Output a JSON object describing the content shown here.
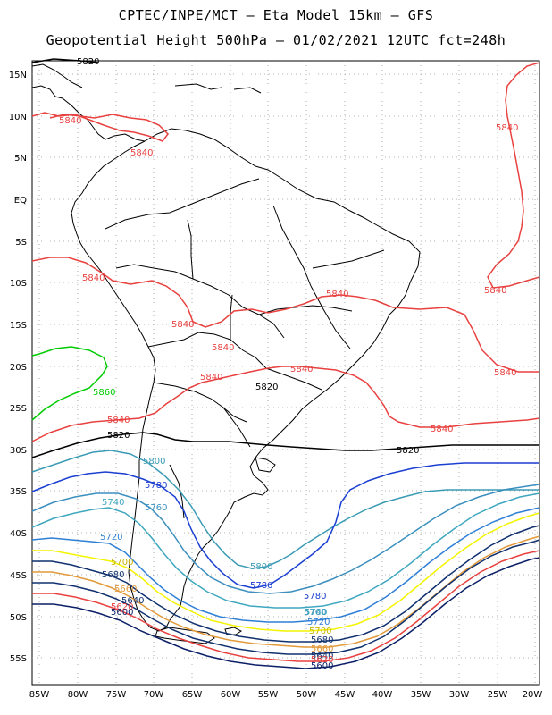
{
  "header": {
    "line1": "CPTEC/INPE/MCT –  Eta Model 15km – GFS",
    "line2": "Geopotential Height 500hPa – 01/02/2021 12UTC fct=248h"
  },
  "axes": {
    "lat_ticks": [
      "15N",
      "10N",
      "5N",
      "EQ",
      "5S",
      "10S",
      "15S",
      "20S",
      "25S",
      "30S",
      "35S",
      "40S",
      "45S",
      "50S",
      "55S"
    ],
    "lon_ticks": [
      "85W",
      "80W",
      "75W",
      "70W",
      "65W",
      "60W",
      "55W",
      "50W",
      "45W",
      "40W",
      "35W",
      "30W",
      "25W",
      "20W"
    ]
  },
  "contours": [
    {
      "value": "5860",
      "color": "#00cc00"
    },
    {
      "value": "5840",
      "color": "#e8413f"
    },
    {
      "value": "5820",
      "color": "#000000"
    },
    {
      "value": "5800",
      "color": "#3b9bb5"
    },
    {
      "value": "5780",
      "color": "#1a3fd1"
    },
    {
      "value": "5760",
      "color": "#3b8fbf"
    },
    {
      "value": "5740",
      "color": "#3fa7bf"
    },
    {
      "value": "5720",
      "color": "#2f7fd6"
    },
    {
      "value": "5700",
      "color": "#f4f400"
    },
    {
      "value": "5680",
      "color": "#10306f"
    },
    {
      "value": "5660",
      "color": "#e29a3a"
    },
    {
      "value": "5640",
      "color": "#10306f"
    },
    {
      "value": "5620",
      "color": "#e8413f"
    },
    {
      "value": "5600",
      "color": "#0b1f66"
    }
  ],
  "labels": {
    "l5820_top": "5820",
    "l5840_a": "5840",
    "l5840_b": "5840",
    "l5840_c": "5840",
    "l5840_d": "5840",
    "l5840_e": "5840",
    "l5840_f": "5840",
    "l5840_g": "5840",
    "l5840_h": "5840",
    "l5840_i": "5840",
    "l5840_j": "5840",
    "l5840_k": "5840",
    "l5840_l": "5840",
    "l5840_m": "5840",
    "l5860": "5860",
    "l5820_a": "5820",
    "l5820_b": "5820",
    "l5820_c": "5820",
    "l5800_a": "5800",
    "l5800_b": "5800",
    "l5780_a": "5780",
    "l5780_b": "5780",
    "l5780_c": "5780",
    "l5760_a": "5760",
    "l5760_b": "5760",
    "l5740_a": "5740",
    "l5740_b": "5740",
    "l5720_a": "5720",
    "l5720_b": "5720",
    "l5700_a": "5700",
    "l5700_b": "5700",
    "l5680_a": "5680",
    "l5680_b": "5680",
    "l5660_a": "5660",
    "l5660_b": "5660",
    "l5640_a": "5640",
    "l5640_b": "5640",
    "l5620_a": "5620",
    "l5620_b": "5620",
    "l5600_a": "5600",
    "l5600_b": "5600"
  }
}
